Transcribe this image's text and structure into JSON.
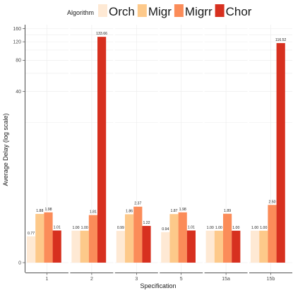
{
  "chart_data": {
    "type": "bar",
    "xlabel": "Specification",
    "ylabel": "Average Delay (log scale)",
    "legend_title": "Algorithm",
    "legend_position": "top",
    "grid": true,
    "y_scale": "log",
    "categories": [
      "1",
      "2",
      "3",
      "5",
      "15a",
      "15b"
    ],
    "y_ticks": [
      "0",
      "40",
      "80",
      "120",
      "160"
    ],
    "series": [
      {
        "name": "Orch",
        "color": "#fee9d4",
        "values": [
          0.77,
          1.0,
          0.99,
          0.94,
          1.0,
          1.0
        ],
        "labels": [
          "0.77",
          "1.00",
          "0.99",
          "0.94",
          "1.00",
          "1.00"
        ]
      },
      {
        "name": "Migr",
        "color": "#fdc98a",
        "values": [
          1.88,
          1.0,
          1.86,
          1.87,
          1.0,
          1.0
        ],
        "labels": [
          "1.88",
          "1.00",
          "1.86",
          "1.87",
          "1.00",
          "1.00"
        ]
      },
      {
        "name": "Migrr",
        "color": "#fb8c59",
        "values": [
          1.98,
          1.81,
          2.37,
          1.98,
          1.89,
          2.5
        ],
        "labels": [
          "1.98",
          "1.81",
          "2.37",
          "1.98",
          "1.89",
          "2.50"
        ]
      },
      {
        "name": "Chor",
        "color": "#d7301f",
        "values": [
          1.01,
          133.66,
          1.22,
          1.01,
          1.0,
          116.52
        ],
        "labels": [
          "1.01",
          "133.66",
          "1.22",
          "1.01",
          "1.00",
          "116.52"
        ]
      }
    ]
  }
}
